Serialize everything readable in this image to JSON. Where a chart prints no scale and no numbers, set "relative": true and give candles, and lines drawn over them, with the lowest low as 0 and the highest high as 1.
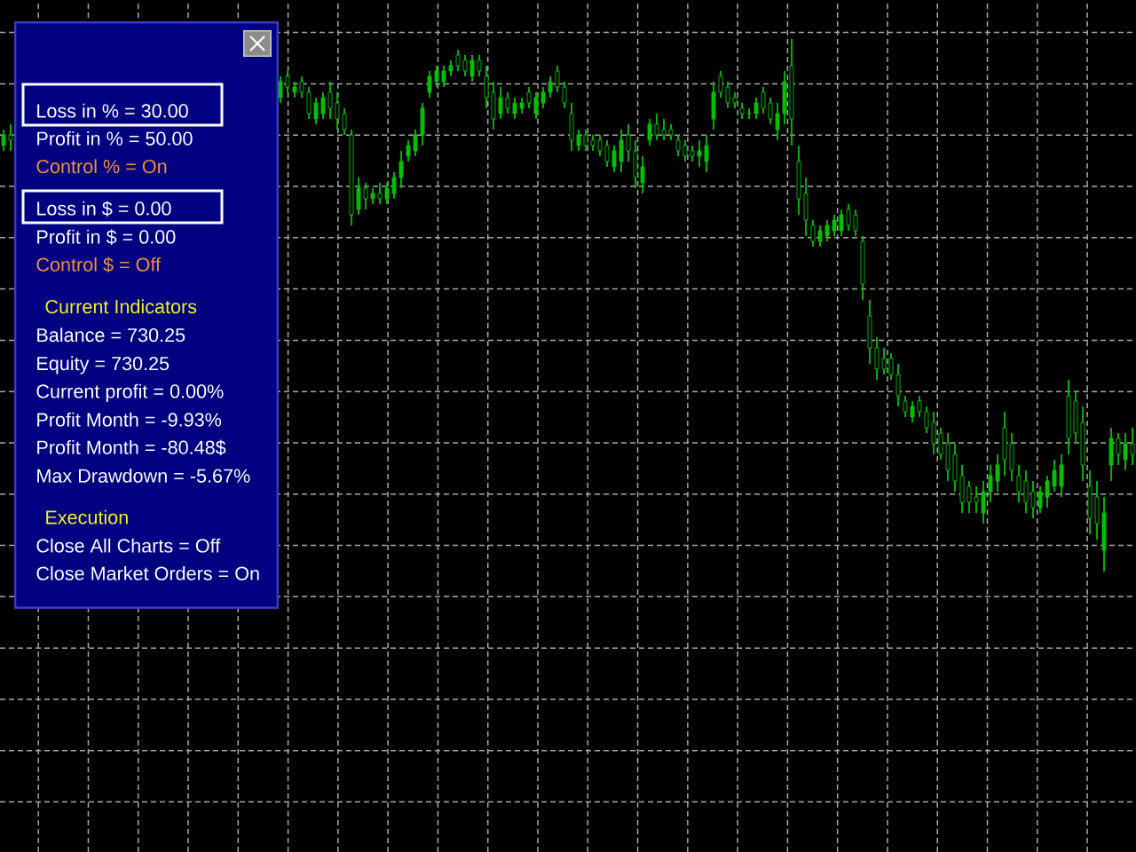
{
  "chart_data": [
    {
      "type": "candlestick",
      "relative": true,
      "grid": true,
      "color": "#00c000",
      "categories": [
        null,
        null,
        null,
        null,
        null,
        null,
        null,
        null,
        null,
        null,
        null,
        null,
        null,
        null,
        null,
        null,
        null,
        null,
        null,
        null,
        null,
        null,
        null,
        null,
        null,
        null,
        null,
        null,
        null,
        null,
        null,
        null,
        null,
        null,
        null,
        null,
        null,
        null,
        null,
        null,
        null,
        null,
        null,
        null,
        null,
        null,
        null,
        null,
        null,
        null,
        null,
        null,
        null,
        null,
        null,
        null,
        null,
        null,
        null,
        null,
        null,
        null,
        null,
        null,
        null,
        null,
        null,
        null,
        null,
        null,
        null,
        null,
        null,
        null,
        null,
        null,
        null,
        null,
        null,
        null,
        null,
        null,
        null,
        null,
        null,
        null,
        null,
        null,
        null,
        null,
        null,
        null,
        null,
        null,
        null,
        null,
        null,
        null,
        null,
        null,
        null,
        null,
        null,
        null,
        null,
        null,
        null,
        null,
        null,
        null,
        null,
        null,
        null,
        null,
        null,
        null,
        null,
        null,
        null,
        null,
        null,
        null,
        null,
        null,
        null,
        null,
        null,
        null,
        null,
        null,
        null,
        null,
        null,
        null,
        null,
        null,
        null,
        null,
        null,
        null,
        null,
        null,
        null,
        null,
        null,
        null,
        null,
        null,
        null,
        null,
        null,
        null,
        null,
        null,
        null,
        null,
        null,
        null,
        null,
        null
      ],
      "ohlc": [
        [
          0.8,
          0.83,
          0.79,
          0.82
        ],
        [
          0.82,
          0.84,
          0.79,
          0.81
        ],
        null,
        null,
        null,
        null,
        null,
        null,
        null,
        null,
        null,
        null,
        null,
        null,
        null,
        null,
        null,
        null,
        null,
        null,
        null,
        null,
        null,
        null,
        null,
        null,
        null,
        null,
        null,
        null,
        null,
        null,
        null,
        null,
        null,
        null,
        null,
        null,
        null,
        [
          0.89,
          0.93,
          0.88,
          0.92
        ],
        [
          0.93,
          0.94,
          0.9,
          0.91
        ],
        [
          0.9,
          0.92,
          0.89,
          0.91
        ],
        [
          0.92,
          0.93,
          0.89,
          0.9
        ],
        [
          0.9,
          0.91,
          0.85,
          0.86
        ],
        [
          0.85,
          0.89,
          0.84,
          0.88
        ],
        [
          0.86,
          0.9,
          0.85,
          0.89
        ],
        [
          0.9,
          0.92,
          0.85,
          0.87
        ],
        [
          0.88,
          0.9,
          0.83,
          0.85
        ],
        [
          0.86,
          0.87,
          0.82,
          0.83
        ],
        [
          0.82,
          0.83,
          0.65,
          0.67
        ],
        [
          0.68,
          0.74,
          0.67,
          0.72
        ],
        [
          0.72,
          0.73,
          0.68,
          0.7
        ],
        [
          0.7,
          0.72,
          0.69,
          0.71
        ],
        [
          0.71,
          0.73,
          0.69,
          0.7
        ],
        [
          0.7,
          0.73,
          0.69,
          0.72
        ],
        [
          0.71,
          0.75,
          0.7,
          0.74
        ],
        [
          0.74,
          0.79,
          0.72,
          0.77
        ],
        [
          0.78,
          0.81,
          0.77,
          0.8
        ],
        [
          0.79,
          0.83,
          0.78,
          0.82
        ],
        [
          0.82,
          0.88,
          0.8,
          0.87
        ],
        [
          0.9,
          0.94,
          0.89,
          0.93
        ],
        [
          0.92,
          0.95,
          0.91,
          0.94
        ],
        [
          0.92,
          0.95,
          0.91,
          0.94
        ],
        [
          0.94,
          0.96,
          0.93,
          0.95
        ],
        [
          0.97,
          0.98,
          0.94,
          0.95
        ],
        [
          0.96,
          0.97,
          0.93,
          0.94
        ],
        [
          0.93,
          0.97,
          0.92,
          0.96
        ],
        [
          0.96,
          0.97,
          0.93,
          0.94
        ],
        [
          0.93,
          0.95,
          0.87,
          0.89
        ],
        [
          0.9,
          0.92,
          0.83,
          0.85
        ],
        [
          0.86,
          0.91,
          0.85,
          0.89
        ],
        [
          0.89,
          0.9,
          0.86,
          0.87
        ],
        [
          0.86,
          0.89,
          0.85,
          0.88
        ],
        [
          0.87,
          0.89,
          0.86,
          0.88
        ],
        [
          0.9,
          0.91,
          0.87,
          0.88
        ],
        [
          0.86,
          0.9,
          0.85,
          0.89
        ],
        [
          0.88,
          0.91,
          0.87,
          0.9
        ],
        [
          0.9,
          0.93,
          0.89,
          0.92
        ],
        [
          0.94,
          0.95,
          0.9,
          0.91
        ],
        [
          0.91,
          0.92,
          0.87,
          0.88
        ],
        [
          0.86,
          0.88,
          0.79,
          0.81
        ],
        [
          0.8,
          0.83,
          0.79,
          0.82
        ],
        [
          0.82,
          0.83,
          0.79,
          0.8
        ],
        [
          0.81,
          0.82,
          0.79,
          0.8
        ],
        [
          0.81,
          0.82,
          0.78,
          0.79
        ],
        [
          0.8,
          0.81,
          0.76,
          0.77
        ],
        [
          0.76,
          0.8,
          0.75,
          0.79
        ],
        [
          0.77,
          0.83,
          0.75,
          0.81
        ],
        [
          0.82,
          0.84,
          0.77,
          0.79
        ],
        [
          0.79,
          0.81,
          0.72,
          0.74
        ],
        [
          0.73,
          0.78,
          0.71,
          0.76
        ],
        [
          0.81,
          0.85,
          0.8,
          0.84
        ],
        [
          0.84,
          0.86,
          0.81,
          0.82
        ],
        [
          0.83,
          0.85,
          0.81,
          0.82
        ],
        [
          0.83,
          0.84,
          0.81,
          0.82
        ],
        [
          0.81,
          0.82,
          0.78,
          0.79
        ],
        [
          0.8,
          0.81,
          0.77,
          0.78
        ],
        [
          0.79,
          0.8,
          0.77,
          0.78
        ],
        [
          0.78,
          0.81,
          0.76,
          0.79
        ],
        [
          0.77,
          0.82,
          0.75,
          0.8
        ],
        [
          0.85,
          0.92,
          0.83,
          0.9
        ],
        [
          0.93,
          0.94,
          0.89,
          0.9
        ],
        [
          0.91,
          0.92,
          0.87,
          0.88
        ],
        [
          0.89,
          0.9,
          0.87,
          0.88
        ],
        [
          0.87,
          0.88,
          0.85,
          0.86
        ],
        [
          0.86,
          0.87,
          0.85,
          0.86
        ],
        [
          0.86,
          0.89,
          0.85,
          0.88
        ],
        [
          0.9,
          0.91,
          0.86,
          0.87
        ],
        [
          0.88,
          0.89,
          0.84,
          0.85
        ],
        [
          0.83,
          0.88,
          0.81,
          0.86
        ],
        [
          0.86,
          0.94,
          0.84,
          0.92
        ],
        [
          0.95,
          1.0,
          0.8,
          0.85
        ],
        [
          0.77,
          0.8,
          0.67,
          0.7
        ],
        [
          0.71,
          0.74,
          0.63,
          0.66
        ],
        [
          0.65,
          0.66,
          0.61,
          0.62
        ],
        [
          0.62,
          0.65,
          0.61,
          0.64
        ],
        [
          0.63,
          0.66,
          0.62,
          0.65
        ],
        [
          0.64,
          0.67,
          0.63,
          0.66
        ],
        [
          0.64,
          0.68,
          0.63,
          0.67
        ],
        [
          0.68,
          0.69,
          0.64,
          0.65
        ],
        [
          0.67,
          0.68,
          0.63,
          0.64
        ],
        [
          0.62,
          0.63,
          0.51,
          0.54
        ],
        [
          0.48,
          0.51,
          0.39,
          0.42
        ],
        [
          0.42,
          0.44,
          0.36,
          0.38
        ],
        [
          0.4,
          0.42,
          0.37,
          0.38
        ],
        [
          0.4,
          0.41,
          0.36,
          0.37
        ],
        [
          0.37,
          0.39,
          0.31,
          0.33
        ],
        [
          0.32,
          0.33,
          0.29,
          0.3
        ],
        [
          0.29,
          0.32,
          0.28,
          0.31
        ],
        [
          0.32,
          0.33,
          0.29,
          0.3
        ],
        [
          0.3,
          0.31,
          0.26,
          0.27
        ],
        [
          0.28,
          0.3,
          0.22,
          0.24
        ],
        [
          0.26,
          0.27,
          0.21,
          0.22
        ],
        [
          0.24,
          0.26,
          0.17,
          0.19
        ],
        [
          0.22,
          0.24,
          0.15,
          0.17
        ],
        [
          0.18,
          0.2,
          0.11,
          0.13
        ],
        [
          0.16,
          0.17,
          0.11,
          0.13
        ],
        [
          0.14,
          0.16,
          0.11,
          0.13
        ],
        [
          0.11,
          0.17,
          0.09,
          0.15
        ],
        [
          0.15,
          0.2,
          0.13,
          0.18
        ],
        [
          0.17,
          0.22,
          0.15,
          0.2
        ],
        [
          0.27,
          0.3,
          0.18,
          0.21
        ],
        [
          0.24,
          0.26,
          0.17,
          0.19
        ],
        [
          0.18,
          0.2,
          0.13,
          0.15
        ],
        [
          0.17,
          0.19,
          0.11,
          0.13
        ],
        [
          0.15,
          0.17,
          0.1,
          0.12
        ],
        [
          0.12,
          0.16,
          0.11,
          0.15
        ],
        [
          0.14,
          0.18,
          0.12,
          0.17
        ],
        [
          0.16,
          0.21,
          0.15,
          0.19
        ],
        [
          0.16,
          0.22,
          0.14,
          0.2
        ],
        [
          0.33,
          0.36,
          0.22,
          0.25
        ],
        [
          0.32,
          0.34,
          0.24,
          0.26
        ],
        [
          0.28,
          0.31,
          0.17,
          0.2
        ],
        [
          0.16,
          0.19,
          0.07,
          0.1
        ],
        [
          0.14,
          0.17,
          0.06,
          0.09
        ],
        [
          0.04,
          0.14,
          0.0,
          0.11
        ],
        [
          0.2,
          0.27,
          0.17,
          0.25
        ],
        [
          0.25,
          0.26,
          0.2,
          0.22
        ],
        [
          0.21,
          0.26,
          0.19,
          0.24
        ],
        [
          0.24,
          0.27,
          0.2,
          0.22
        ]
      ]
    },
    {
      "type": "other",
      "annotations": [
        "Loss in % = 30.00",
        "Profit in % = 50.00",
        "Control % = On",
        "Loss in $ = 0.00",
        "Profit in $ = 0.00",
        "Control $ = Off",
        "Current Indicators",
        "Balance = 730.25",
        "Equity = 730.25",
        "Current profit = 0.00%",
        "Profit Month = -9.93%",
        "Profit Month = -80.48$",
        "Max Drawdown = -5.67%",
        "Execution",
        "Close All Charts = Off",
        "Close Market Orders = On"
      ]
    }
  ]
}
